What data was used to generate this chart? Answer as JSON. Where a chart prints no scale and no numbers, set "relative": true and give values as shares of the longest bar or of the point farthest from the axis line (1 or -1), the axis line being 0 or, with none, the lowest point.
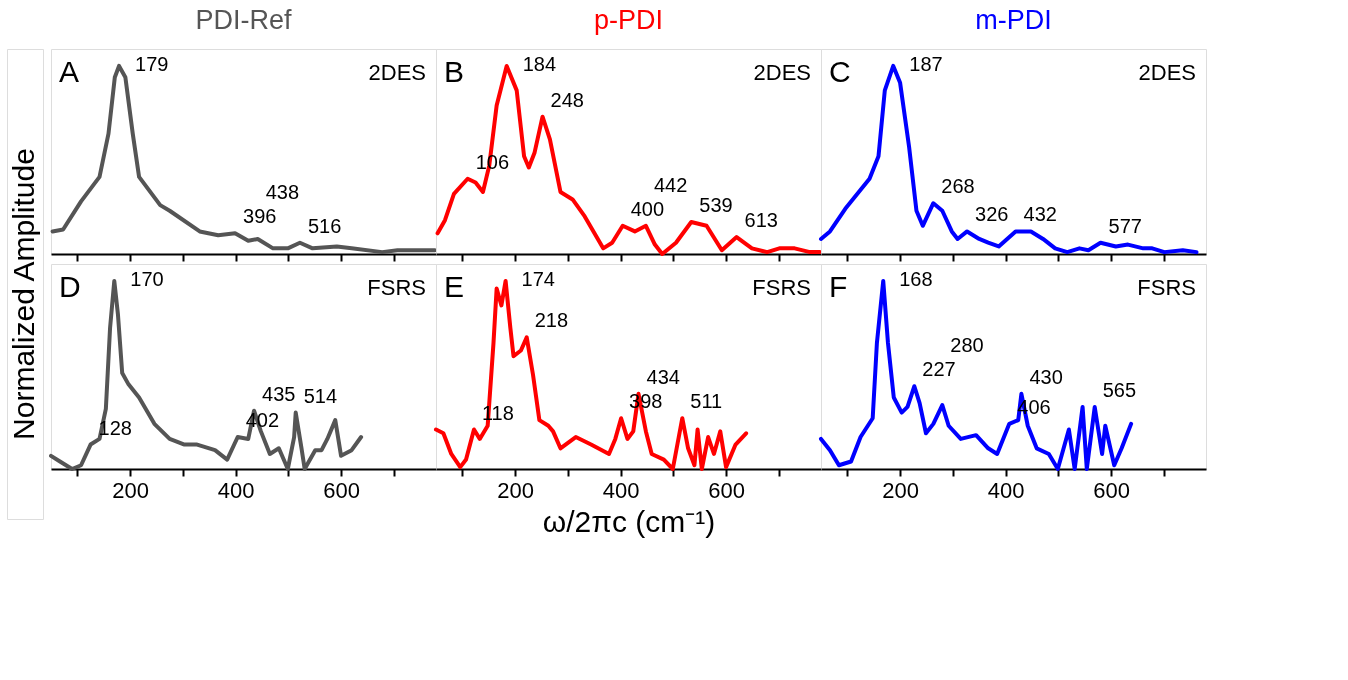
{
  "chart_data": [
    {
      "type": "line",
      "title": "PDI-Ref",
      "ylabel": "Normalized Amplitude",
      "relative": true,
      "xlim": [
        50,
        780
      ],
      "xticks": [
        {
          "value": 100,
          "label": null
        },
        200,
        {
          "value": 300,
          "label": null
        },
        400,
        {
          "value": 500,
          "label": null
        },
        600,
        {
          "value": 700,
          "label": null
        }
      ],
      "tick_labels": false,
      "series": [
        {
          "color": "#555555",
          "x": [
            53,
            73,
            107,
            142,
            159,
            171,
            179,
            191,
            205,
            217,
            257,
            275,
            332,
            367,
            399,
            424,
            442,
            471,
            499,
            522,
            546,
            592,
            620,
            678,
            707,
            736,
            778
          ],
          "values": [
            0.12,
            0.13,
            0.28,
            0.41,
            0.64,
            0.94,
            1,
            0.94,
            0.64,
            0.41,
            0.26,
            0.23,
            0.12,
            0.1,
            0.11,
            0.07,
            0.08,
            0.03,
            0.03,
            0.06,
            0.03,
            0.04,
            0.03,
            0.01,
            0.02,
            0.02,
            0.02
          ]
        }
      ],
      "annotations": [
        "A",
        "2DES",
        {
          "text": "179",
          "x": 179,
          "y": 1
        },
        {
          "text": "396",
          "x": 399,
          "y": 0.11
        },
        {
          "text": "438",
          "x": 442,
          "y": 0.08
        },
        {
          "text": "516",
          "x": 522,
          "y": 0.06
        }
      ]
    },
    {
      "type": "line",
      "title": "p-PDI",
      "relative": true,
      "xlim": [
        50,
        780
      ],
      "xticks": [
        {
          "value": 100,
          "label": null
        },
        200,
        {
          "value": 300,
          "label": null
        },
        400,
        {
          "value": 500,
          "label": null
        },
        600,
        {
          "value": 700,
          "label": null
        }
      ],
      "tick_labels": false,
      "series": [
        {
          "color": "#ff0000",
          "x": [
            53,
            67,
            84,
            110,
            125,
            139,
            151,
            165,
            184,
            203,
            217,
            226,
            237,
            252,
            266,
            286,
            309,
            332,
            367,
            384,
            404,
            427,
            448,
            465,
            479,
            505,
            534,
            563,
            592,
            620,
            649,
            678,
            701,
            730,
            759,
            778
          ],
          "values": [
            0.11,
            0.18,
            0.32,
            0.4,
            0.38,
            0.33,
            0.47,
            0.79,
            1,
            0.87,
            0.52,
            0.46,
            0.54,
            0.73,
            0.61,
            0.33,
            0.29,
            0.2,
            0.03,
            0.06,
            0.15,
            0.12,
            0.15,
            0.05,
            0.0,
            0.06,
            0.17,
            0.15,
            0.02,
            0.09,
            0.03,
            0.01,
            0.03,
            0.03,
            0.01,
            0.01
          ]
        }
      ],
      "annotations": [
        "B",
        "2DES",
        {
          "text": "106",
          "x": 110,
          "y": 0.4
        },
        {
          "text": "184",
          "x": 184,
          "y": 1
        },
        {
          "text": "248",
          "x": 252,
          "y": 0.73
        },
        {
          "text": "400",
          "x": 404,
          "y": 0.15
        },
        {
          "text": "442",
          "x": 448,
          "y": 0.15
        },
        {
          "text": "539",
          "x": 534,
          "y": 0.17
        },
        {
          "text": "613",
          "x": 620,
          "y": 0.09
        }
      ]
    },
    {
      "type": "line",
      "title": "m-PDI",
      "relative": true,
      "xlim": [
        50,
        780
      ],
      "xticks": [
        {
          "value": 100,
          "label": null
        },
        200,
        {
          "value": 300,
          "label": null
        },
        400,
        {
          "value": 500,
          "label": null
        },
        600,
        {
          "value": 700,
          "label": null
        }
      ],
      "tick_labels": false,
      "series": [
        {
          "color": "#0000ff",
          "x": [
            50,
            67,
            96,
            142,
            159,
            171,
            187,
            200,
            217,
            231,
            243,
            263,
            280,
            298,
            309,
            327,
            350,
            367,
            387,
            419,
            448,
            471,
            494,
            517,
            540,
            557,
            580,
            609,
            632,
            661,
            678,
            701,
            736,
            762
          ],
          "values": [
            0.08,
            0.12,
            0.24,
            0.4,
            0.52,
            0.87,
            1,
            0.91,
            0.57,
            0.23,
            0.15,
            0.27,
            0.23,
            0.12,
            0.08,
            0.12,
            0.08,
            0.06,
            0.04,
            0.12,
            0.12,
            0.08,
            0.03,
            0.01,
            0.03,
            0.02,
            0.06,
            0.04,
            0.05,
            0.03,
            0.03,
            0.01,
            0.02,
            0.01
          ]
        }
      ],
      "annotations": [
        "C",
        "2DES",
        {
          "text": "187",
          "x": 187,
          "y": 1
        },
        {
          "text": "268",
          "x": 263,
          "y": 0.27
        },
        {
          "text": "326",
          "x": 327,
          "y": 0.12
        },
        {
          "text": "432",
          "x": 419,
          "y": 0.12
        },
        {
          "text": "577",
          "x": 580,
          "y": 0.06
        }
      ]
    },
    {
      "type": "line",
      "relative": true,
      "xlim": [
        50,
        780
      ],
      "xticks": [
        {
          "value": 100,
          "label": null
        },
        200,
        {
          "value": 300,
          "label": null
        },
        400,
        {
          "value": 500,
          "label": null
        },
        600,
        {
          "value": 700,
          "label": null
        }
      ],
      "tick_labels": "x",
      "series": [
        {
          "color": "#555555",
          "x": [
            50,
            67,
            90,
            107,
            125,
            142,
            154,
            162,
            170,
            177,
            185,
            197,
            217,
            246,
            275,
            303,
            327,
            361,
            384,
            404,
            424,
            435,
            448,
            465,
            482,
            499,
            511,
            514,
            525,
            531,
            551,
            563,
            574,
            589,
            600,
            620,
            638
          ],
          "values": [
            0.07,
            0.04,
            0,
            0.02,
            0.13,
            0.16,
            0.32,
            0.75,
            1,
            0.82,
            0.51,
            0.45,
            0.38,
            0.24,
            0.16,
            0.13,
            0.13,
            0.1,
            0.05,
            0.17,
            0.16,
            0.31,
            0.2,
            0.08,
            0.11,
            0,
            0.17,
            0.3,
            0.11,
            0,
            0.1,
            0.1,
            0.16,
            0.26,
            0.07,
            0.1,
            0.17
          ]
        }
      ],
      "annotations": [
        "D",
        "FSRS",
        {
          "text": "128",
          "x": 125,
          "y": 0.13
        },
        {
          "text": "170",
          "x": 170,
          "y": 1
        },
        {
          "text": "402",
          "x": 404,
          "y": 0.17
        },
        {
          "text": "435",
          "x": 435,
          "y": 0.31
        },
        {
          "text": "514",
          "x": 514,
          "y": 0.3
        }
      ]
    },
    {
      "type": "line",
      "xlabel": "ω/2πc (cm⁻¹)",
      "relative": true,
      "xlim": [
        50,
        780
      ],
      "xticks": [
        {
          "value": 100,
          "label": null
        },
        200,
        {
          "value": 300,
          "label": null
        },
        400,
        {
          "value": 500,
          "label": null
        },
        600,
        {
          "value": 700,
          "label": null
        }
      ],
      "tick_labels": "x",
      "series": [
        {
          "color": "#ff0000",
          "x": [
            50,
            64,
            79,
            96,
            107,
            122,
            133,
            148,
            159,
            165,
            174,
            182,
            191,
            197,
            211,
            222,
            234,
            246,
            263,
            272,
            286,
            315,
            344,
            378,
            390,
            401,
            413,
            424,
            434,
            448,
            459,
            482,
            499,
            517,
            528,
            540,
            546,
            554,
            566,
            577,
            589,
            600,
            618,
            638
          ],
          "values": [
            0.21,
            0.19,
            0.08,
            0.01,
            0.05,
            0.21,
            0.16,
            0.23,
            0.67,
            0.96,
            0.87,
            1,
            0.75,
            0.6,
            0.63,
            0.7,
            0.5,
            0.26,
            0.23,
            0.2,
            0.11,
            0.17,
            0.13,
            0.08,
            0.16,
            0.27,
            0.16,
            0.2,
            0.4,
            0.2,
            0.08,
            0.05,
            0,
            0.27,
            0.11,
            0.02,
            0.21,
            0,
            0.17,
            0.08,
            0.2,
            0.01,
            0.13,
            0.19
          ]
        }
      ],
      "annotations": [
        "E",
        "FSRS",
        {
          "text": "118",
          "x": 122,
          "y": 0.21
        },
        {
          "text": "174",
          "x": 182,
          "y": 1
        },
        {
          "text": "218",
          "x": 222,
          "y": 0.7
        },
        {
          "text": "398",
          "x": 401,
          "y": 0.27
        },
        {
          "text": "434",
          "x": 434,
          "y": 0.4
        },
        {
          "text": "511",
          "x": 517,
          "y": 0.27
        }
      ]
    },
    {
      "type": "line",
      "relative": true,
      "xlim": [
        50,
        780
      ],
      "xticks": [
        {
          "value": 100,
          "label": null
        },
        200,
        {
          "value": 300,
          "label": null
        },
        400,
        {
          "value": 500,
          "label": null
        },
        600,
        {
          "value": 700,
          "label": null
        }
      ],
      "tick_labels": "x",
      "series": [
        {
          "color": "#0000ff",
          "x": [
            50,
            67,
            84,
            107,
            125,
            148,
            156,
            168,
            177,
            188,
            203,
            214,
            227,
            237,
            249,
            263,
            280,
            292,
            315,
            344,
            367,
            384,
            407,
            424,
            430,
            442,
            459,
            482,
            499,
            520,
            531,
            546,
            554,
            569,
            583,
            589,
            606,
            620,
            638
          ],
          "values": [
            0.16,
            0.1,
            0.02,
            0.04,
            0.17,
            0.27,
            0.67,
            1,
            0.67,
            0.38,
            0.3,
            0.33,
            0.44,
            0.35,
            0.19,
            0.24,
            0.34,
            0.23,
            0.16,
            0.18,
            0.11,
            0.08,
            0.24,
            0.26,
            0.4,
            0.23,
            0.11,
            0.08,
            0,
            0.21,
            0,
            0.33,
            0,
            0.33,
            0.08,
            0.23,
            0.02,
            0.11,
            0.24
          ]
        }
      ],
      "annotations": [
        "F",
        "FSRS",
        {
          "text": "168",
          "x": 168,
          "y": 1
        },
        {
          "text": "227",
          "x": 227,
          "y": 0.44
        },
        {
          "text": "280",
          "x": 280,
          "y": 0.34
        },
        {
          "text": "406",
          "x": 407,
          "y": 0.24
        },
        {
          "text": "430",
          "x": 430,
          "y": 0.4
        },
        {
          "text": "565",
          "x": 569,
          "y": 0.33
        }
      ]
    }
  ]
}
